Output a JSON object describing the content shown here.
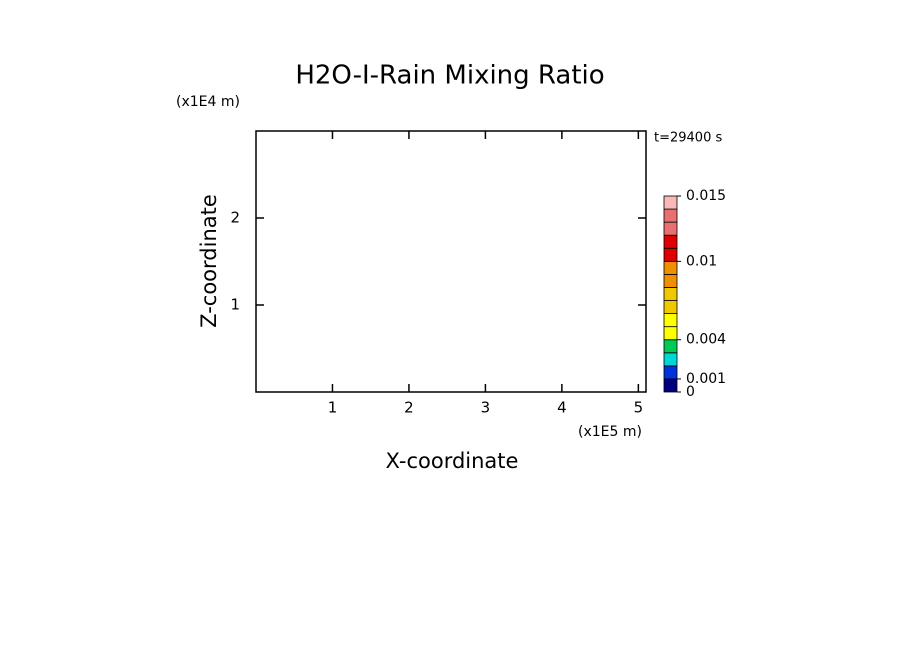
{
  "chart_data": {
    "type": "contour",
    "title": "H2O-I-Rain Mixing Ratio",
    "xlabel": "X-coordinate",
    "ylabel": "Z-coordinate",
    "x_unit": "(x1E5 m)",
    "y_unit": "(x1E4 m)",
    "annotation": "t=29400 s",
    "xlim": [
      0,
      5.1
    ],
    "ylim": [
      0,
      3
    ],
    "xticks": [
      1,
      2,
      3,
      4,
      5
    ],
    "yticks": [
      1,
      2
    ],
    "colorbar": {
      "levels": [
        0,
        0.001,
        0.002,
        0.003,
        0.004,
        0.005,
        0.006,
        0.007,
        0.008,
        0.009,
        0.01,
        0.011,
        0.012,
        0.013,
        0.014,
        0.015
      ],
      "colors": [
        "#000080",
        "#0033dd",
        "#00d8d8",
        "#00cc55",
        "#ffff00",
        "#ffff00",
        "#f0c800",
        "#f0c800",
        "#f09000",
        "#f09000",
        "#e00000",
        "#e00000",
        "#e87070",
        "#e87070",
        "#f8b8b8"
      ],
      "lim": [
        0,
        0.015
      ],
      "ticks": [
        0,
        0.001,
        0.004,
        0.01,
        0.015
      ]
    }
  }
}
